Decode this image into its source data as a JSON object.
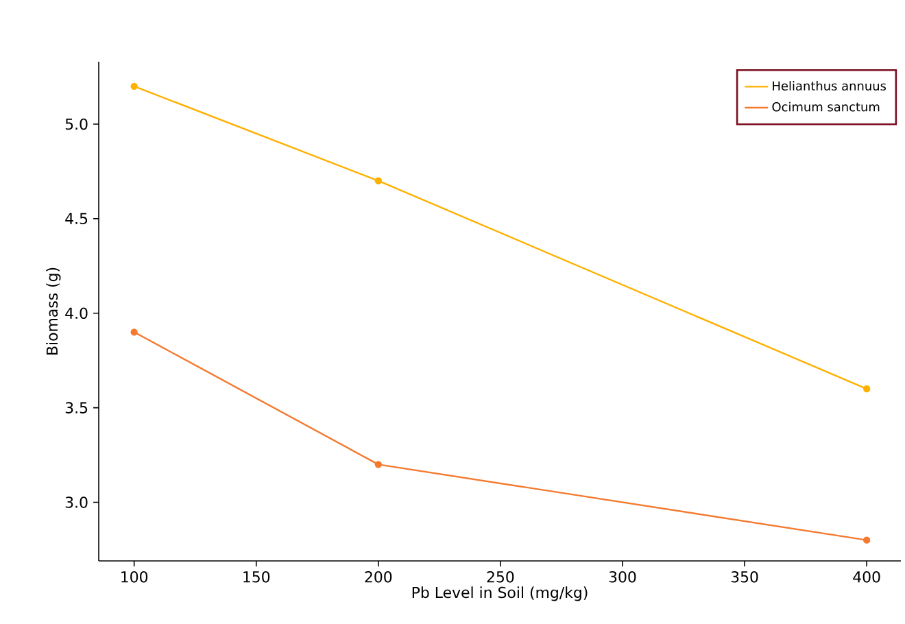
{
  "chart_data": {
    "type": "line",
    "xlabel": "Pb Level in Soil (mg/kg)",
    "ylabel": "Biomass (g)",
    "x": [
      100,
      200,
      400
    ],
    "series": [
      {
        "name": "Helianthus annuus",
        "color": "#ffb000",
        "values": [
          5.2,
          4.7,
          3.6
        ]
      },
      {
        "name": "Ocimum sanctum",
        "color": "#f47a30",
        "values": [
          3.9,
          3.2,
          2.8
        ]
      }
    ],
    "xlim": [
      85.5,
      414
    ],
    "ylim": [
      2.69,
      5.33
    ],
    "xticks": [
      100,
      150,
      200,
      250,
      300,
      350,
      400
    ],
    "yticks": [
      {
        "value": 3,
        "label": "3.0"
      },
      3.5,
      {
        "value": 4,
        "label": "4.0"
      },
      4.5,
      {
        "value": 5,
        "label": "5.0"
      }
    ],
    "grid": false,
    "legend": "top right",
    "marker": "circle",
    "line_style": "solid"
  }
}
